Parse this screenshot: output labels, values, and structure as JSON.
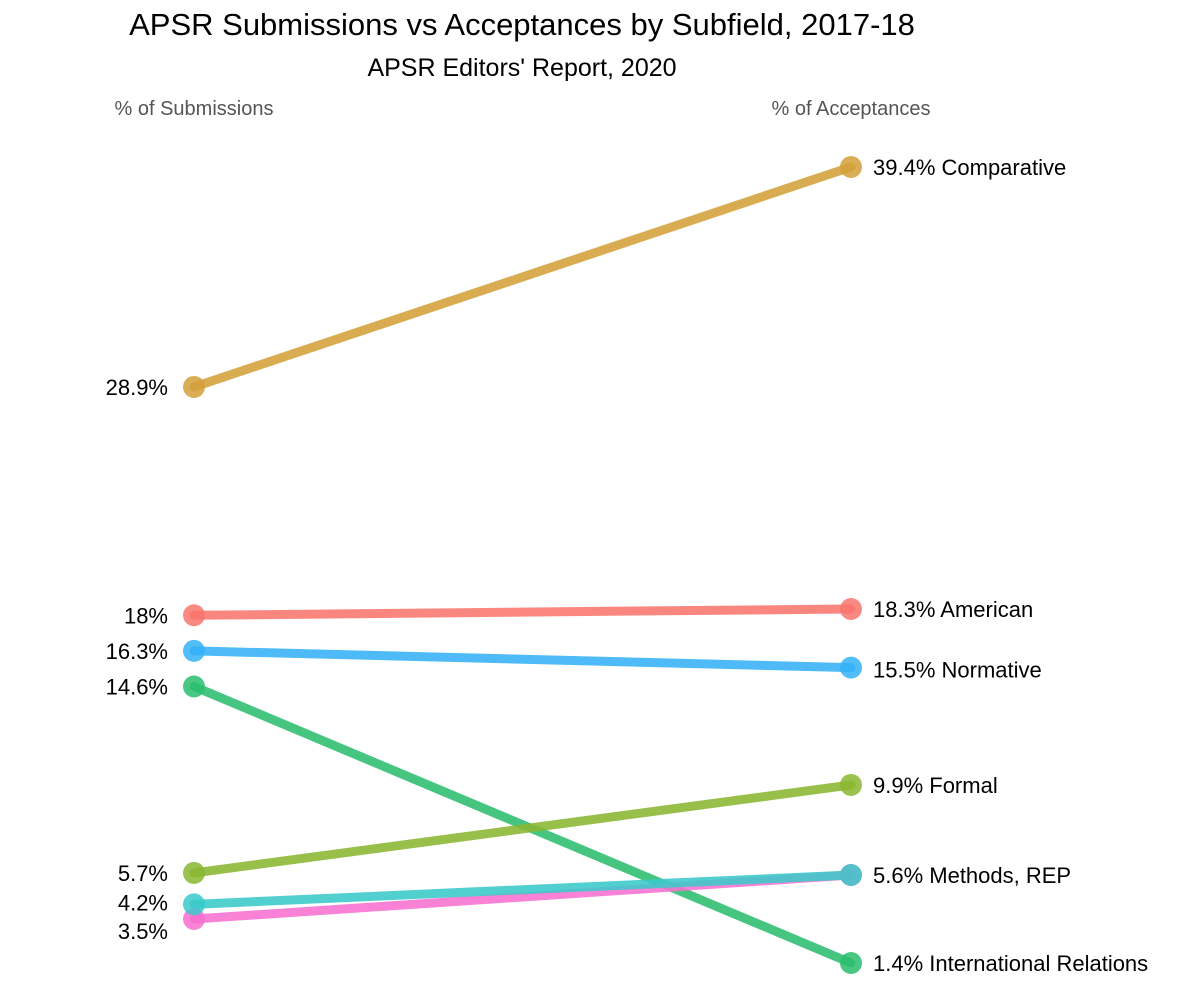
{
  "chart_data": {
    "type": "line",
    "title": "APSR Submissions vs Acceptances by Subfield, 2017-18",
    "subtitle": "APSR Editors' Report, 2020",
    "x": [
      "% of Submissions",
      "% of Acceptances"
    ],
    "ylim": [
      0,
      40
    ],
    "grid": false,
    "legend": "none",
    "series": [
      {
        "name": "Comparative",
        "values": [
          28.9,
          39.4
        ],
        "labels": [
          "28.9%",
          "39.4%"
        ],
        "color": "#D4A03A"
      },
      {
        "name": "American",
        "values": [
          18.0,
          18.3
        ],
        "labels": [
          "18%",
          "18.3%"
        ],
        "color": "#F8766D"
      },
      {
        "name": "Normative",
        "values": [
          16.3,
          15.5
        ],
        "labels": [
          "16.3%",
          "15.5%"
        ],
        "color": "#35B2F7"
      },
      {
        "name": "International Relations",
        "values": [
          14.6,
          1.4
        ],
        "labels": [
          "14.6%",
          "1.4%"
        ],
        "color": "#2CBD6F"
      },
      {
        "name": "Formal",
        "values": [
          5.7,
          9.9
        ],
        "labels": [
          "5.7%",
          "9.9%"
        ],
        "color": "#8AB631"
      },
      {
        "name": "Methods, REP",
        "values": [
          3.5,
          5.6
        ],
        "labels": [
          "3.5%",
          "5.6%"
        ],
        "color": "#F86FD0"
      },
      {
        "name": "",
        "values": [
          4.2,
          5.6
        ],
        "labels": [
          "4.2%",
          ""
        ],
        "color": "#3AC9C9"
      }
    ]
  }
}
